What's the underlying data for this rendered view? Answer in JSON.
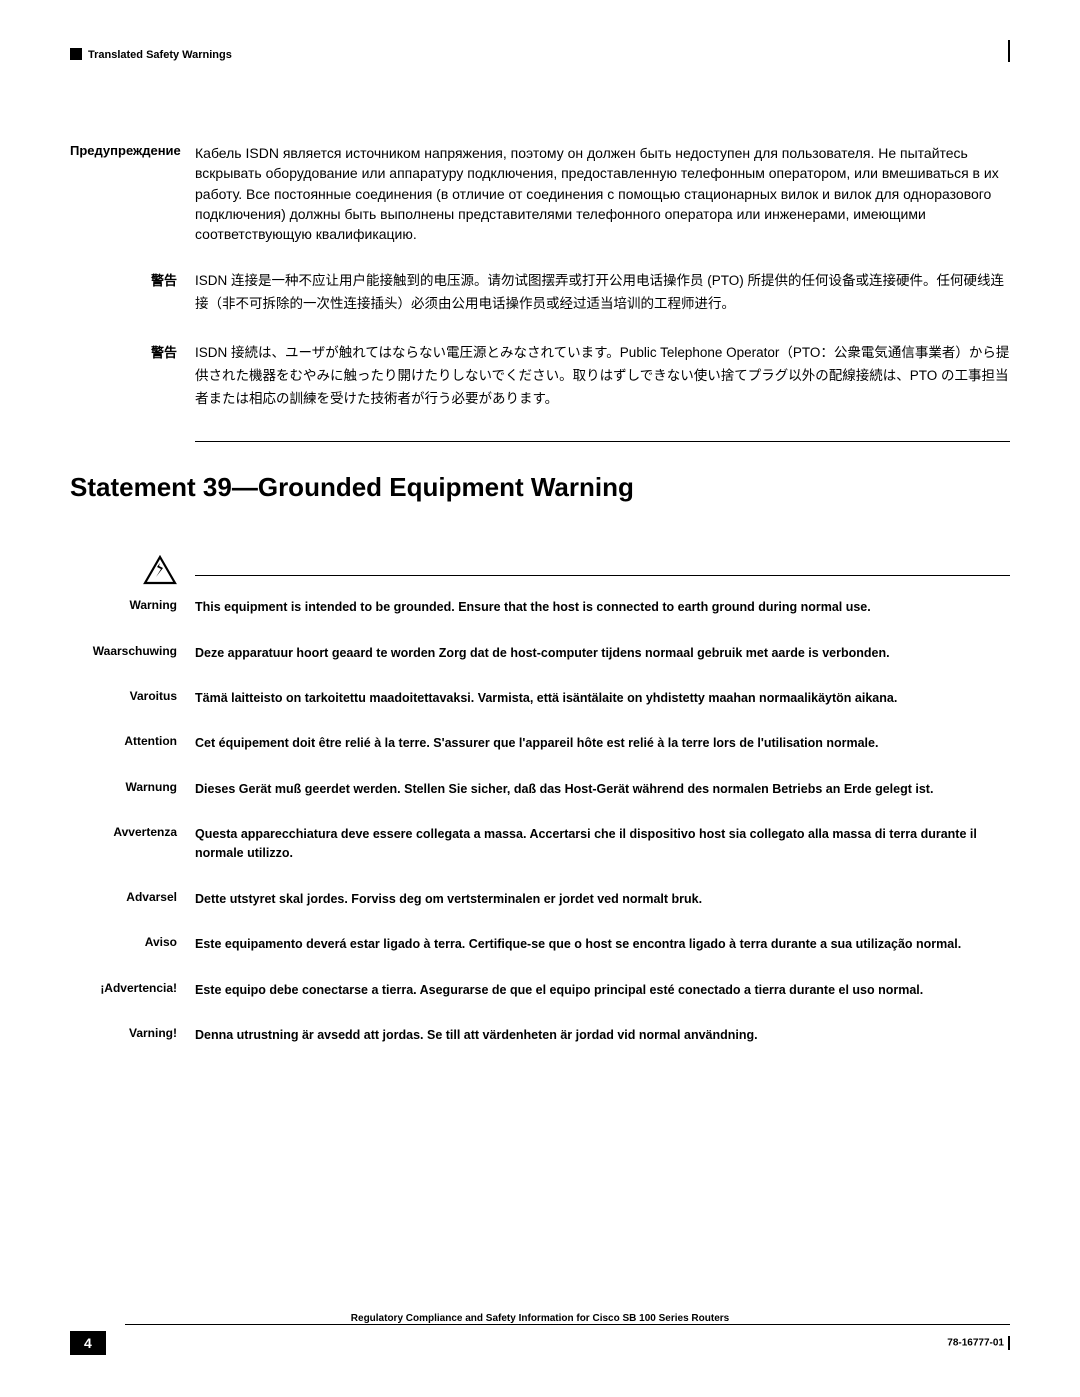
{
  "header": {
    "section_title": "Translated Safety Warnings"
  },
  "section1": {
    "rows": [
      {
        "label": "Предупреждение",
        "text": "Кабель ISDN является источником напряжения, поэтому он должен быть недоступен для пользователя. Не пытайтесь вскрывать оборудование или аппаратуру подключения, предоставленную телефонным оператором, или вмешиваться в их работу. Все постоянные соединения (в отличие от соединения с помощью стационарных вилок и вилок для одноразового подключения) должны быть выполнены представителями телефонного оператора или инженерами, имеющими соответствующую квалификацию.",
        "cjk": false
      },
      {
        "label": "警告",
        "text": "ISDN 连接是一种不应让用户能接触到的电压源。请勿试图摆弄或打开公用电话操作员 (PTO) 所提供的任何设备或连接硬件。任何硬线连接（非不可拆除的一次性连接插头）必须由公用电话操作员或经过适当培训的工程师进行。",
        "cjk": true
      },
      {
        "label": "警告",
        "text": "ISDN 接続は、ユーザが触れてはならない電圧源とみなされています。Public Telephone Operator（PTO：公衆電気通信事業者）から提供された機器をむやみに触ったり開けたりしないでください。取りはずしできない使い捨てプラグ以外の配線接続は、PTO の工事担当者または相応の訓練を受けた技術者が行う必要があります。",
        "cjk": true
      }
    ]
  },
  "heading": "Statement 39—Grounded Equipment Warning",
  "section2": {
    "rows": [
      {
        "label": "Warning",
        "text": "This equipment is intended to be grounded. Ensure that the host is connected to earth ground during normal use."
      },
      {
        "label": "Waarschuwing",
        "text": "Deze apparatuur hoort geaard te worden Zorg dat de host-computer tijdens normaal gebruik met aarde is verbonden."
      },
      {
        "label": "Varoitus",
        "text": "Tämä laitteisto on tarkoitettu maadoitettavaksi. Varmista, että isäntälaite on yhdistetty maahan normaalikäytön aikana."
      },
      {
        "label": "Attention",
        "text": "Cet équipement doit être relié à la terre. S'assurer que l'appareil hôte est relié à la terre lors de l'utilisation normale."
      },
      {
        "label": "Warnung",
        "text": "Dieses Gerät muß geerdet werden. Stellen Sie sicher, daß das Host-Gerät während des normalen Betriebs an Erde gelegt ist."
      },
      {
        "label": "Avvertenza",
        "text": "Questa apparecchiatura deve essere collegata a massa. Accertarsi che il dispositivo host sia collegato alla massa di terra durante il normale utilizzo."
      },
      {
        "label": "Advarsel",
        "text": "Dette utstyret skal jordes. Forviss deg om vertsterminalen er jordet ved normalt bruk."
      },
      {
        "label": "Aviso",
        "text": "Este equipamento deverá estar ligado à terra. Certifique-se que o host se encontra ligado à terra durante a sua utilização normal."
      },
      {
        "label": "¡Advertencia!",
        "text": "Este equipo debe conectarse a tierra. Asegurarse de que el equipo principal esté conectado a tierra durante el uso normal."
      },
      {
        "label": "Varning!",
        "text": "Denna utrustning är avsedd att jordas. Se till att värdenheten är jordad vid normal användning."
      }
    ]
  },
  "footer": {
    "title": "Regulatory Compliance and Safety Information for Cisco SB 100 Series Routers",
    "page": "4",
    "docnum": "78-16777-01"
  }
}
